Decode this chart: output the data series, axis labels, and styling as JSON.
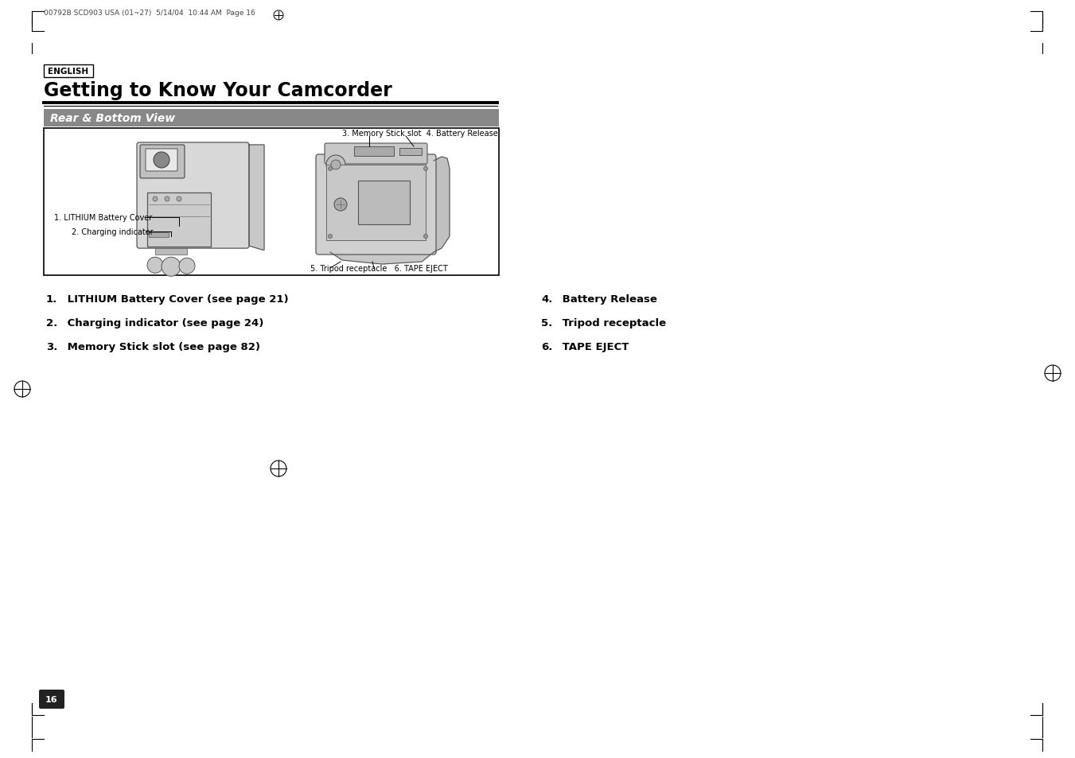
{
  "page_header": "00792B SCD903 USA (01~27)  5/14/04  10:44 AM  Page 16",
  "english_label": "ENGLISH",
  "title": "Getting to Know Your Camcorder",
  "section_title": "Rear & Bottom View",
  "diag_label_3_4": "3. Memory Stick slot  4. Battery Release",
  "diag_label_1": "1. LITHIUM Battery Cover",
  "diag_label_2": "2. Charging indicator",
  "diag_label_5_6": "5. Tripod receptacle   6. TAPE EJECT",
  "list_items_left": [
    [
      "1.",
      " LITHIUM Battery Cover (see page 21)"
    ],
    [
      "2.",
      " Charging indicator (see page 24)"
    ],
    [
      "3.",
      " Memory Stick slot (see page 82)"
    ]
  ],
  "list_items_right": [
    [
      "4.",
      " Battery Release"
    ],
    [
      "5.",
      " Tripod receptacle"
    ],
    [
      "6.",
      " TAPE EJECT"
    ]
  ],
  "page_number": "16",
  "bg_color": "#ffffff",
  "title_underline_color": "#000000",
  "section_bar_gray": "#808080",
  "diagram_border": "#000000"
}
